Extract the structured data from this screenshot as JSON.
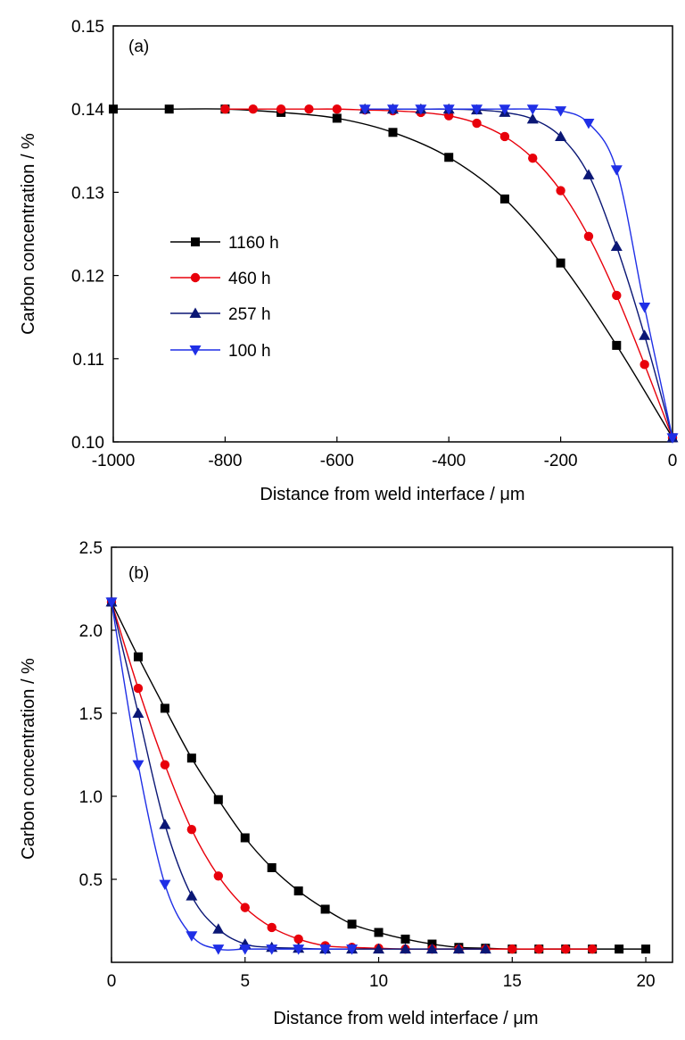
{
  "chart_data": [
    {
      "type": "line",
      "panel_label": "(a)",
      "xlabel": "Distance from weld interface / μm",
      "ylabel": "Carbon concentration / %",
      "xlim": [
        -1000,
        0
      ],
      "ylim": [
        0.1,
        0.15
      ],
      "xticks": [
        -1000,
        -800,
        -600,
        -400,
        -200,
        0
      ],
      "xtick_labels": [
        "-1000",
        "-800",
        "-600",
        "-400",
        "-200",
        "0"
      ],
      "yticks": [
        0.1,
        0.11,
        0.12,
        0.13,
        0.14,
        0.15
      ],
      "ytick_labels": [
        "0.10",
        "0.11",
        "0.12",
        "0.13",
        "0.14",
        "0.15"
      ],
      "grid": false,
      "legend": "center-left",
      "series": [
        {
          "name": "1160 h",
          "color": "#000000",
          "marker": "square",
          "x": [
            -1000,
            -900,
            -800,
            -700,
            -600,
            -500,
            -400,
            -300,
            -200,
            -100,
            0
          ],
          "y": [
            0.14,
            0.14,
            0.14,
            0.1396,
            0.1389,
            0.1372,
            0.1342,
            0.1292,
            0.1215,
            0.1116,
            0.1005
          ]
        },
        {
          "name": "460 h",
          "color": "#e8000b",
          "marker": "circle",
          "x": [
            -800,
            -750,
            -700,
            -650,
            -600,
            -550,
            -500,
            -450,
            -400,
            -350,
            -300,
            -250,
            -200,
            -150,
            -100,
            -50,
            0
          ],
          "y": [
            0.14,
            0.14,
            0.14,
            0.14,
            0.14,
            0.1399,
            0.1398,
            0.1396,
            0.1392,
            0.1383,
            0.1367,
            0.1341,
            0.1302,
            0.1247,
            0.1176,
            0.1093,
            0.1005
          ]
        },
        {
          "name": "257 h",
          "color": "#0b1775",
          "marker": "triangle-up",
          "x": [
            -550,
            -500,
            -450,
            -400,
            -350,
            -300,
            -250,
            -200,
            -150,
            -100,
            -50,
            0
          ],
          "y": [
            0.14,
            0.14,
            0.14,
            0.14,
            0.1399,
            0.1396,
            0.1388,
            0.1367,
            0.1321,
            0.1235,
            0.1128,
            0.1005
          ]
        },
        {
          "name": "100 h",
          "color": "#1f2fe6",
          "marker": "triangle-down",
          "x": [
            -550,
            -500,
            -450,
            -400,
            -350,
            -300,
            -250,
            -200,
            -150,
            -100,
            -50,
            0
          ],
          "y": [
            0.14,
            0.14,
            0.14,
            0.14,
            0.14,
            0.14,
            0.14,
            0.1398,
            0.1383,
            0.1327,
            0.1162,
            0.1005
          ]
        }
      ]
    },
    {
      "type": "line",
      "panel_label": "(b)",
      "xlabel": "Distance from weld interface / μm",
      "ylabel": "Carbon concentration / %",
      "xlim": [
        0,
        21
      ],
      "ylim": [
        0,
        2.5
      ],
      "xticks": [
        0,
        5,
        10,
        15,
        20
      ],
      "xtick_labels": [
        "0",
        "5",
        "10",
        "15",
        "20"
      ],
      "yticks": [
        0.5,
        1.0,
        1.5,
        2.0,
        2.5
      ],
      "ytick_labels": [
        "0.5",
        "1.0",
        "1.5",
        "2.0",
        "2.5"
      ],
      "grid": false,
      "series": [
        {
          "name": "1160 h",
          "color": "#000000",
          "marker": "square",
          "x": [
            0,
            1,
            2,
            3,
            4,
            5,
            6,
            7,
            8,
            9,
            10,
            11,
            12,
            13,
            14,
            15,
            16,
            17,
            18,
            19,
            20
          ],
          "y": [
            2.17,
            1.84,
            1.53,
            1.23,
            0.98,
            0.75,
            0.57,
            0.43,
            0.32,
            0.23,
            0.18,
            0.14,
            0.11,
            0.09,
            0.085,
            0.08,
            0.08,
            0.08,
            0.08,
            0.08,
            0.08
          ]
        },
        {
          "name": "460 h",
          "color": "#e8000b",
          "marker": "circle",
          "x": [
            0,
            1,
            2,
            3,
            4,
            5,
            6,
            7,
            8,
            9,
            10,
            11,
            12,
            13,
            14,
            15,
            16,
            17,
            18
          ],
          "y": [
            2.17,
            1.65,
            1.19,
            0.8,
            0.52,
            0.33,
            0.21,
            0.14,
            0.1,
            0.09,
            0.085,
            0.08,
            0.08,
            0.08,
            0.08,
            0.08,
            0.08,
            0.08,
            0.08
          ]
        },
        {
          "name": "257 h",
          "color": "#0b1775",
          "marker": "triangle-up",
          "x": [
            0,
            1,
            2,
            3,
            4,
            5,
            6,
            7,
            8,
            9,
            10,
            11,
            12,
            13,
            14
          ],
          "y": [
            2.17,
            1.5,
            0.83,
            0.4,
            0.2,
            0.11,
            0.09,
            0.085,
            0.08,
            0.08,
            0.08,
            0.08,
            0.08,
            0.08,
            0.08
          ]
        },
        {
          "name": "100 h",
          "color": "#1f2fe6",
          "marker": "triangle-down",
          "x": [
            0,
            1,
            2,
            3,
            4,
            5,
            6,
            7,
            8,
            9
          ],
          "y": [
            2.17,
            1.19,
            0.47,
            0.16,
            0.08,
            0.08,
            0.08,
            0.08,
            0.08,
            0.08
          ]
        }
      ]
    }
  ]
}
